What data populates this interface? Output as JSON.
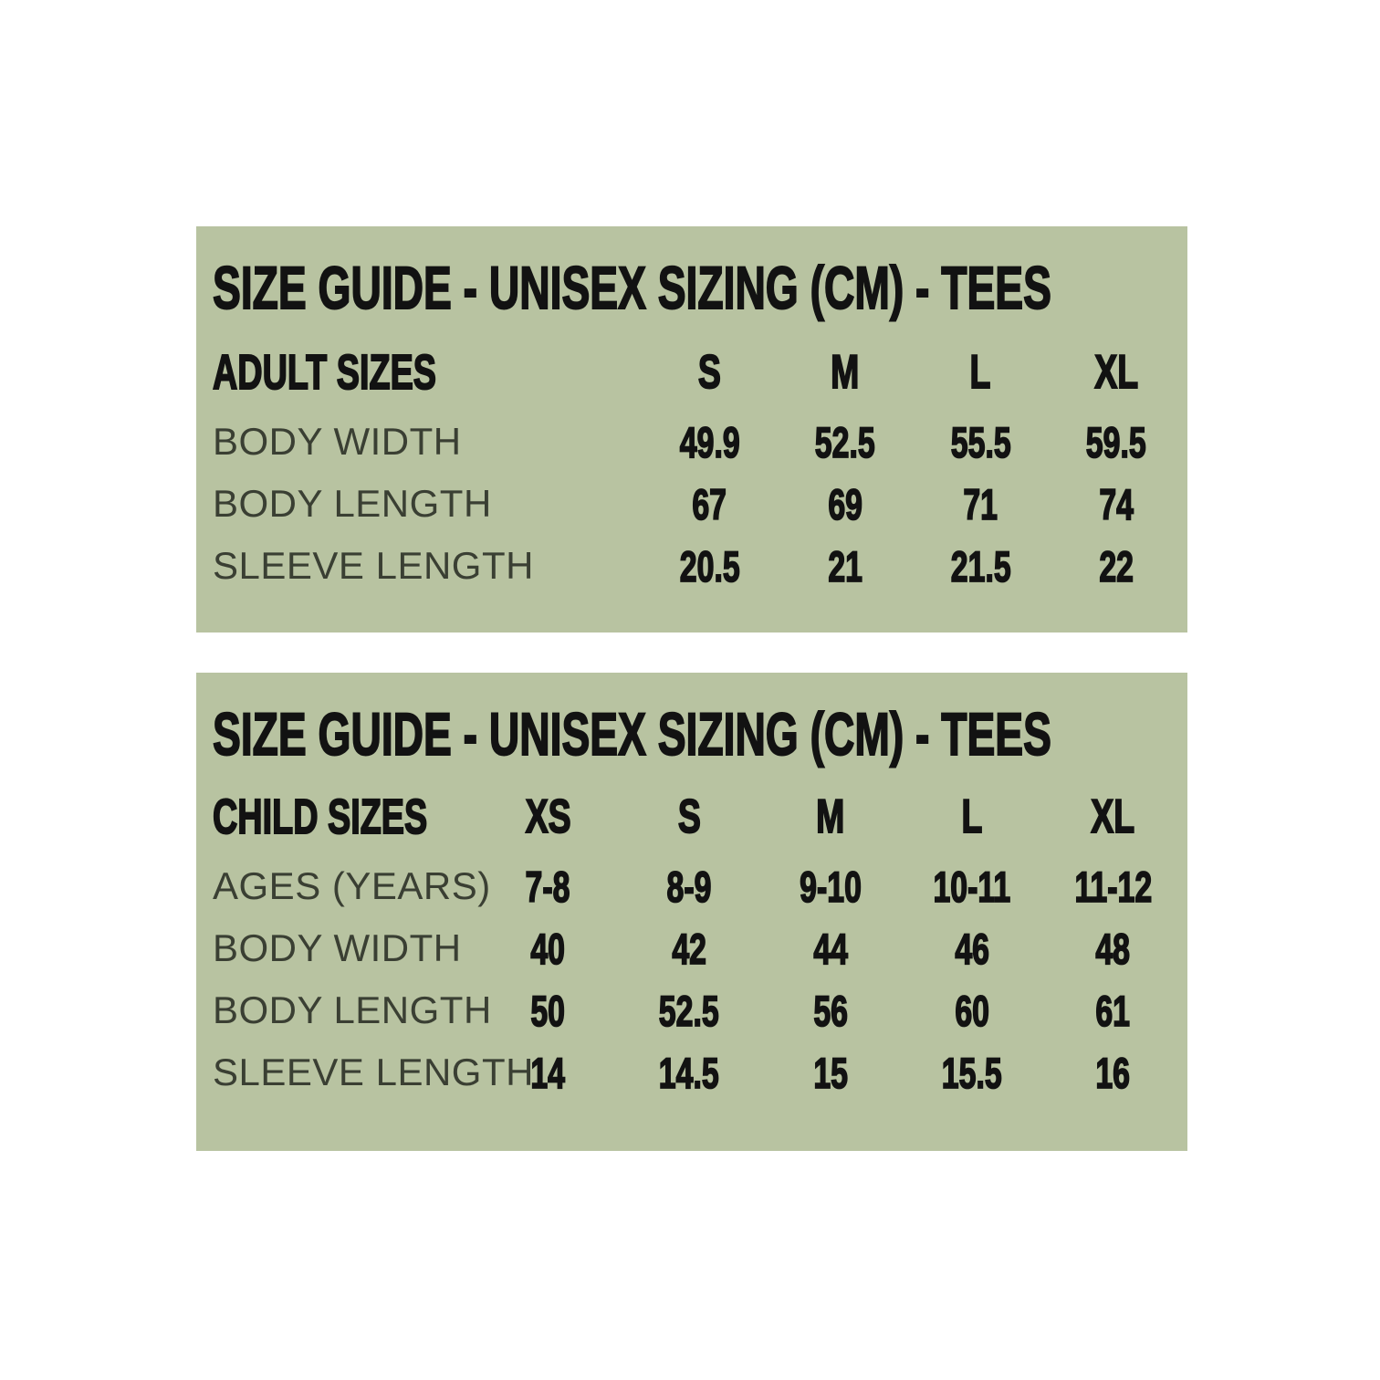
{
  "page": {
    "background_color": "#ffffff",
    "panel_color": "#b8c3a1",
    "heading_text_color": "#121212",
    "label_text_color": "#3a3f33"
  },
  "chart_data": [
    {
      "type": "table",
      "title": "SIZE GUIDE - UNISEX SIZING (CM) - TEES",
      "corner_label": "ADULT SIZES",
      "columns": [
        "S",
        "M",
        "L",
        "XL"
      ],
      "row_labels": [
        "BODY WIDTH",
        "BODY LENGTH",
        "SLEEVE LENGTH"
      ],
      "rows": [
        [
          "49.9",
          "52.5",
          "55.5",
          "59.5"
        ],
        [
          "67",
          "69",
          "71",
          "74"
        ],
        [
          "20.5",
          "21",
          "21.5",
          "22"
        ]
      ]
    },
    {
      "type": "table",
      "title": "SIZE GUIDE - UNISEX SIZING (CM) - TEES",
      "corner_label": "CHILD SIZES",
      "columns": [
        "XS",
        "S",
        "M",
        "L",
        "XL"
      ],
      "row_labels": [
        "AGES (YEARS)",
        "BODY WIDTH",
        "BODY LENGTH",
        "SLEEVE LENGTH"
      ],
      "rows": [
        [
          "7-8",
          "8-9",
          "9-10",
          "10-11",
          "11-12"
        ],
        [
          "40",
          "42",
          "44",
          "46",
          "48"
        ],
        [
          "50",
          "52.5",
          "56",
          "60",
          "61"
        ],
        [
          "14",
          "14.5",
          "15",
          "15.5",
          "16"
        ]
      ]
    }
  ]
}
